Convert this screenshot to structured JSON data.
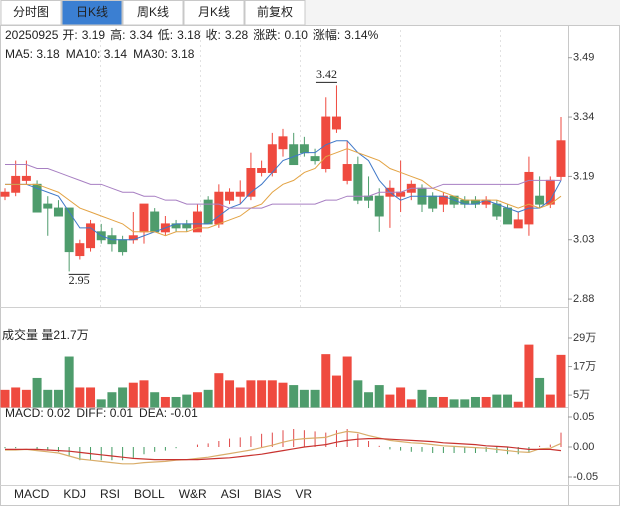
{
  "tabs": [
    {
      "label": "分时图"
    },
    {
      "label": "日K线",
      "active": true
    },
    {
      "label": "周K线"
    },
    {
      "label": "月K线"
    },
    {
      "label": "前复权"
    }
  ],
  "info": [
    {
      "label": "20250925"
    },
    {
      "label": "开:",
      "value": "3.19"
    },
    {
      "label": "高:",
      "value": "3.34"
    },
    {
      "label": "低:",
      "value": "3.18"
    },
    {
      "label": "收:",
      "value": "3.28"
    },
    {
      "label": "涨跌:",
      "value": "0.10"
    },
    {
      "label": "涨幅:",
      "value": "3.14%"
    }
  ],
  "indicator_tabs": [
    {
      "label": "MACD",
      "active": true
    },
    {
      "label": "KDJ"
    },
    {
      "label": "RSI"
    },
    {
      "label": "BOLL"
    },
    {
      "label": "W&R"
    },
    {
      "label": "ASI"
    },
    {
      "label": "BIAS"
    },
    {
      "label": "VR"
    }
  ],
  "chart_data": [
    {
      "type": "candlestick",
      "up_color": "#ef4a3f",
      "down_color": "#4e9c6c",
      "open": [
        3.14,
        3.15,
        3.18,
        3.17,
        3.12,
        3.11,
        3.11,
        2.99,
        3.01,
        3.05,
        3.04,
        3.03,
        3.03,
        3.05,
        3.1,
        3.05,
        3.07,
        3.07,
        3.05,
        3.13,
        3.07,
        3.13,
        3.14,
        3.14,
        3.2,
        3.2,
        3.26,
        3.27,
        3.27,
        3.24,
        3.21,
        3.31,
        3.18,
        3.22,
        3.14,
        3.14,
        3.14,
        3.14,
        3.15,
        3.16,
        3.14,
        3.12,
        3.14,
        3.13,
        3.13,
        3.12,
        3.12,
        3.11,
        3.06,
        3.07,
        3.14,
        3.12,
        3.19
      ],
      "high": [
        3.16,
        3.23,
        3.23,
        3.18,
        3.14,
        3.13,
        3.11,
        3.03,
        3.08,
        3.07,
        3.06,
        3.04,
        3.1,
        3.12,
        3.11,
        3.09,
        3.08,
        3.08,
        3.12,
        3.14,
        3.17,
        3.16,
        3.18,
        3.25,
        3.23,
        3.3,
        3.31,
        3.3,
        3.29,
        3.26,
        3.39,
        3.42,
        3.28,
        3.24,
        3.19,
        3.16,
        3.18,
        3.23,
        3.18,
        3.17,
        3.15,
        3.15,
        3.14,
        3.14,
        3.14,
        3.14,
        3.13,
        3.12,
        3.1,
        3.24,
        3.19,
        3.19,
        3.34
      ],
      "low": [
        3.13,
        3.14,
        3.17,
        3.1,
        3.04,
        3.09,
        2.95,
        2.98,
        3.0,
        3.02,
        3.0,
        2.99,
        3.02,
        3.02,
        3.05,
        3.04,
        3.05,
        3.05,
        3.05,
        3.07,
        3.06,
        3.12,
        3.12,
        3.13,
        3.19,
        3.19,
        3.24,
        3.22,
        3.24,
        3.22,
        3.2,
        3.3,
        3.17,
        3.12,
        3.11,
        3.05,
        3.06,
        3.1,
        3.13,
        3.1,
        3.1,
        3.1,
        3.11,
        3.11,
        3.11,
        3.11,
        3.08,
        3.07,
        3.06,
        3.04,
        3.11,
        3.11,
        3.18
      ],
      "close": [
        3.15,
        3.19,
        3.19,
        3.1,
        3.11,
        3.09,
        3.0,
        3.02,
        3.07,
        3.03,
        3.02,
        3.0,
        3.04,
        3.12,
        3.05,
        3.07,
        3.06,
        3.06,
        3.1,
        3.07,
        3.15,
        3.15,
        3.15,
        3.21,
        3.21,
        3.27,
        3.29,
        3.22,
        3.25,
        3.23,
        3.34,
        3.34,
        3.22,
        3.13,
        3.13,
        3.09,
        3.16,
        3.15,
        3.17,
        3.12,
        3.11,
        3.14,
        3.12,
        3.12,
        3.12,
        3.13,
        3.09,
        3.07,
        3.08,
        3.2,
        3.12,
        3.18,
        3.28
      ],
      "series": [
        {
          "name": "MA5: 3.18",
          "color": "#3f78c8",
          "values": [
            3.17,
            3.17,
            3.17,
            3.16,
            3.15,
            3.14,
            3.1,
            3.06,
            3.06,
            3.04,
            3.03,
            3.03,
            3.03,
            3.04,
            3.05,
            3.06,
            3.07,
            3.07,
            3.07,
            3.07,
            3.09,
            3.11,
            3.12,
            3.15,
            3.17,
            3.2,
            3.23,
            3.24,
            3.25,
            3.25,
            3.27,
            3.28,
            3.28,
            3.25,
            3.23,
            3.18,
            3.15,
            3.13,
            3.14,
            3.14,
            3.14,
            3.14,
            3.13,
            3.12,
            3.12,
            3.13,
            3.12,
            3.11,
            3.1,
            3.11,
            3.11,
            3.13,
            3.18
          ]
        },
        {
          "name": "MA10: 3.14",
          "color": "#e3a344",
          "values": [
            3.17,
            3.17,
            3.17,
            3.17,
            3.16,
            3.15,
            3.13,
            3.11,
            3.1,
            3.09,
            3.08,
            3.07,
            3.05,
            3.05,
            3.05,
            3.04,
            3.05,
            3.05,
            3.06,
            3.06,
            3.07,
            3.08,
            3.09,
            3.11,
            3.12,
            3.15,
            3.17,
            3.18,
            3.2,
            3.21,
            3.24,
            3.25,
            3.26,
            3.25,
            3.24,
            3.23,
            3.21,
            3.2,
            3.19,
            3.18,
            3.16,
            3.15,
            3.14,
            3.13,
            3.13,
            3.13,
            3.13,
            3.12,
            3.11,
            3.12,
            3.11,
            3.12,
            3.14
          ]
        },
        {
          "name": "MA30: 3.18",
          "color": "#a77fc2",
          "values": [
            3.22,
            3.22,
            3.22,
            3.21,
            3.21,
            3.2,
            3.19,
            3.18,
            3.17,
            3.17,
            3.16,
            3.15,
            3.15,
            3.14,
            3.14,
            3.13,
            3.13,
            3.12,
            3.12,
            3.12,
            3.12,
            3.11,
            3.11,
            3.11,
            3.11,
            3.12,
            3.12,
            3.12,
            3.12,
            3.12,
            3.13,
            3.13,
            3.14,
            3.14,
            3.14,
            3.15,
            3.15,
            3.15,
            3.16,
            3.16,
            3.16,
            3.17,
            3.17,
            3.17,
            3.17,
            3.17,
            3.17,
            3.17,
            3.17,
            3.18,
            3.18,
            3.18,
            3.18
          ]
        }
      ],
      "annotations": [
        "3.42",
        "2.95"
      ],
      "ylim": [
        2.86,
        3.56
      ],
      "yticks": [
        3.49,
        3.34,
        3.19,
        3.03,
        2.88
      ]
    },
    {
      "type": "bar",
      "title": "成交量 量21.7万",
      "up_color": "#ef4a3f",
      "down_color": "#4e9c6c",
      "values": [
        7,
        8,
        7,
        12,
        7,
        7,
        21,
        8,
        8,
        3,
        6,
        8,
        10,
        11,
        6,
        4,
        4,
        5,
        6,
        7,
        14,
        11,
        8,
        11,
        11,
        11,
        10,
        9,
        7,
        7,
        22,
        13,
        21,
        11,
        6,
        9,
        5,
        8,
        3,
        7,
        4,
        4,
        3,
        3,
        4,
        4,
        5,
        5,
        2,
        26,
        12,
        5,
        21.7
      ],
      "ylim": [
        0,
        41.6
      ],
      "yticks": [
        {
          "value": 29,
          "label": "29万"
        },
        {
          "value": 17,
          "label": "17万"
        },
        {
          "value": 5,
          "label": "5万"
        }
      ]
    },
    {
      "type": "macd",
      "up_color": "#e04848",
      "down_color": "#3f9a60",
      "series": [
        {
          "name": "MACD: 0.02",
          "color": "#222222",
          "values": [
            -0.002,
            -0.002,
            0,
            -0.004,
            -0.006,
            -0.008,
            -0.016,
            -0.022,
            -0.022,
            -0.022,
            -0.022,
            -0.022,
            -0.018,
            -0.012,
            -0.008,
            -0.006,
            -0.002,
            0,
            0.004,
            0.006,
            0.01,
            0.014,
            0.016,
            0.018,
            0.022,
            0.024,
            0.028,
            0.03,
            0.028,
            0.026,
            0.024,
            0.028,
            0.03,
            0.022,
            0.01,
            0.002,
            -0.004,
            -0.006,
            -0.008,
            -0.008,
            -0.01,
            -0.01,
            -0.01,
            -0.01,
            -0.01,
            -0.008,
            -0.01,
            -0.012,
            -0.012,
            -0.01,
            0.002,
            0.004,
            0.024
          ]
        },
        {
          "name": "DIFF: 0.01",
          "color": "#d9ad6a",
          "values": [
            -0.005,
            -0.005,
            -0.004,
            -0.006,
            -0.008,
            -0.01,
            -0.015,
            -0.02,
            -0.022,
            -0.024,
            -0.026,
            -0.028,
            -0.028,
            -0.026,
            -0.025,
            -0.024,
            -0.022,
            -0.021,
            -0.019,
            -0.017,
            -0.014,
            -0.011,
            -0.008,
            -0.005,
            -0.001,
            0.003,
            0.008,
            0.012,
            0.014,
            0.015,
            0.016,
            0.022,
            0.026,
            0.024,
            0.019,
            0.015,
            0.011,
            0.009,
            0.007,
            0.006,
            0.004,
            0.002,
            0.001,
            0.0,
            -0.001,
            -0.002,
            -0.004,
            -0.006,
            -0.008,
            -0.009,
            -0.003,
            -0.002,
            0.006
          ]
        },
        {
          "name": "DEA: -0.01",
          "color": "#c8322f",
          "values": [
            -0.004,
            -0.004,
            -0.004,
            -0.004,
            -0.005,
            -0.006,
            -0.007,
            -0.009,
            -0.011,
            -0.013,
            -0.015,
            -0.017,
            -0.019,
            -0.02,
            -0.021,
            -0.021,
            -0.021,
            -0.021,
            -0.021,
            -0.02,
            -0.019,
            -0.018,
            -0.016,
            -0.014,
            -0.012,
            -0.009,
            -0.006,
            -0.003,
            0.0,
            0.002,
            0.004,
            0.008,
            0.011,
            0.013,
            0.014,
            0.014,
            0.013,
            0.012,
            0.011,
            0.01,
            0.009,
            0.007,
            0.006,
            0.005,
            0.004,
            0.002,
            0.001,
            0.0,
            -0.002,
            -0.004,
            -0.004,
            -0.004,
            -0.006
          ]
        }
      ],
      "ylim": [
        -0.065,
        0.065
      ],
      "yticks": [
        0.05,
        {
          "value": 0,
          "label": "0.00"
        },
        -0.05
      ]
    }
  ]
}
